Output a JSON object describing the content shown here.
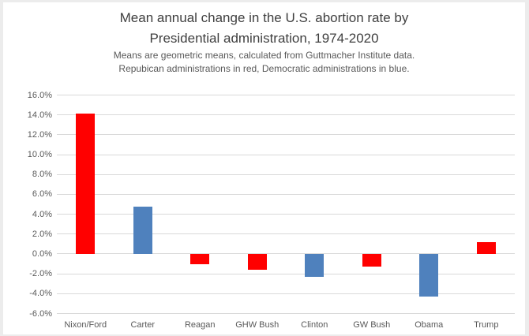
{
  "window": {
    "frame_color": "#ececec",
    "background": "#ffffff"
  },
  "chart_data": {
    "type": "bar",
    "title": "Mean annual change in the U.S. abortion rate by Presidential administration, 1974-2020",
    "title_lines": [
      "Mean annual change in the U.S. abortion rate by",
      "Presidential administration, 1974-2020"
    ],
    "subtitle_lines": [
      "Means are geometric means, calculated from Guttmacher Institute data.",
      "Repubican administrations in red, Democratic administrations in blue."
    ],
    "categories": [
      "Nixon/Ford",
      "Carter",
      "Reagan",
      "GHW Bush",
      "Clinton",
      "GW Bush",
      "Obama",
      "Trump"
    ],
    "values": [
      14.1,
      4.8,
      -1.0,
      -1.6,
      -2.3,
      -1.3,
      -4.3,
      1.2
    ],
    "value_unit": "percent",
    "parties": [
      "republican",
      "democratic",
      "republican",
      "republican",
      "democratic",
      "republican",
      "democratic",
      "republican"
    ],
    "colors": {
      "republican": "#FF0000",
      "democratic": "#4F81BD",
      "gridline": "#d9d9d9",
      "title_text": "#3f3f3f",
      "axis_text": "#595959"
    },
    "xlabel": "",
    "ylabel": "",
    "y_axis": {
      "min": -6,
      "max": 16,
      "step": 2,
      "tick_labels": [
        "16.0%",
        "14.0%",
        "12.0%",
        "10.0%",
        "8.0%",
        "6.0%",
        "4.0%",
        "2.0%",
        "0.0%",
        "-2.0%",
        "-4.0%",
        "-6.0%"
      ]
    },
    "grid": true,
    "legend_position": "none"
  }
}
